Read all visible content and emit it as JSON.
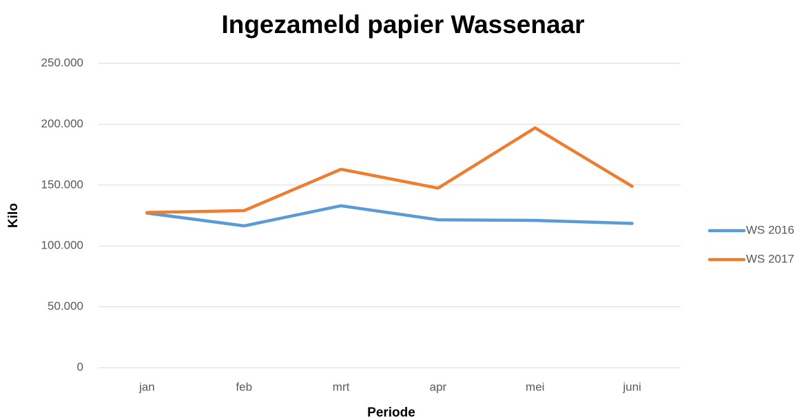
{
  "chart_data": {
    "type": "line",
    "title": "Ingezameld papier Wassenaar",
    "x_label": "Periode",
    "y_label": "Kilo",
    "categories": [
      "jan",
      "feb",
      "mrt",
      "apr",
      "mei",
      "juni"
    ],
    "series": [
      {
        "name": "WS 2016",
        "color": "#5b9bd5",
        "values": [
          127000,
          116500,
          133000,
          121500,
          121000,
          118500
        ]
      },
      {
        "name": "WS 2017",
        "color": "#ed7d31",
        "values": [
          127500,
          129000,
          163000,
          147500,
          197000,
          149000
        ]
      }
    ],
    "ylim": [
      0,
      250000
    ],
    "yticks": [
      0,
      {
        "value": 50000,
        "label": "50.000"
      },
      {
        "value": 100000,
        "label": "100.000"
      },
      {
        "value": 150000,
        "label": "150.000"
      },
      {
        "value": 200000,
        "label": "200.000"
      },
      {
        "value": 250000,
        "label": "250.000"
      }
    ],
    "grid": true,
    "legend": "right"
  }
}
